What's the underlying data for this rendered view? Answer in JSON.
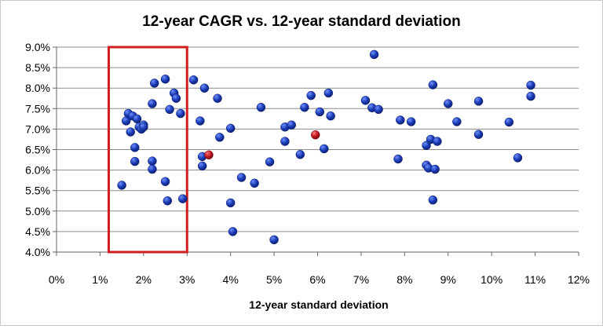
{
  "chart_data": {
    "type": "scatter",
    "title": "12-year CAGR vs. 12-year standard deviation",
    "xlabel": "12-year standard deviation",
    "ylabel": "",
    "xlim": [
      0,
      12
    ],
    "ylim": [
      4.0,
      9.0
    ],
    "x_ticks": [
      0,
      1,
      2,
      3,
      4,
      5,
      6,
      7,
      8,
      9,
      10,
      11,
      12
    ],
    "y_ticks": [
      4.0,
      4.5,
      5.0,
      5.5,
      6.0,
      6.5,
      7.0,
      7.5,
      8.0,
      8.5,
      9.0
    ],
    "x_tick_format": "percent0",
    "y_tick_format": "percent1",
    "grid": "horizontal",
    "legend": "none",
    "colors": {
      "blue": "#1f3fb3",
      "red": "#c0141e",
      "highlight": "#d11f1f"
    },
    "highlight_range_x": [
      1.2,
      3.0
    ],
    "series": [
      {
        "color": "blue",
        "points": [
          [
            1.5,
            5.63
          ],
          [
            1.6,
            7.2
          ],
          [
            1.65,
            7.38
          ],
          [
            1.7,
            6.93
          ],
          [
            1.75,
            7.32
          ],
          [
            1.8,
            6.55
          ],
          [
            1.8,
            6.21
          ],
          [
            1.85,
            7.25
          ],
          [
            1.9,
            7.05
          ],
          [
            1.95,
            7.0
          ],
          [
            2.0,
            7.1
          ],
          [
            2.0,
            7.05
          ],
          [
            2.2,
            7.62
          ],
          [
            2.2,
            6.22
          ],
          [
            2.2,
            6.02
          ],
          [
            2.25,
            8.12
          ],
          [
            2.5,
            8.22
          ],
          [
            2.5,
            5.72
          ],
          [
            2.55,
            5.25
          ],
          [
            2.6,
            7.48
          ],
          [
            2.7,
            7.88
          ],
          [
            2.75,
            7.75
          ],
          [
            2.85,
            7.38
          ],
          [
            2.9,
            5.3
          ],
          [
            3.15,
            8.2
          ],
          [
            3.3,
            7.2
          ],
          [
            3.35,
            6.33
          ],
          [
            3.35,
            6.1
          ],
          [
            3.4,
            8.0
          ],
          [
            3.7,
            7.75
          ],
          [
            3.75,
            6.8
          ],
          [
            4.0,
            7.02
          ],
          [
            4.0,
            5.2
          ],
          [
            4.05,
            4.5
          ],
          [
            4.25,
            5.82
          ],
          [
            4.55,
            5.68
          ],
          [
            4.7,
            7.53
          ],
          [
            4.9,
            6.2
          ],
          [
            5.0,
            4.3
          ],
          [
            5.25,
            7.05
          ],
          [
            5.25,
            6.7
          ],
          [
            5.4,
            7.1
          ],
          [
            5.6,
            6.38
          ],
          [
            5.7,
            7.53
          ],
          [
            5.85,
            7.82
          ],
          [
            6.05,
            7.42
          ],
          [
            6.15,
            6.52
          ],
          [
            6.25,
            7.88
          ],
          [
            6.3,
            7.32
          ],
          [
            7.1,
            7.7
          ],
          [
            7.25,
            7.52
          ],
          [
            7.3,
            8.82
          ],
          [
            7.4,
            7.48
          ],
          [
            7.85,
            6.27
          ],
          [
            7.9,
            7.22
          ],
          [
            8.15,
            7.18
          ],
          [
            8.5,
            6.6
          ],
          [
            8.5,
            6.12
          ],
          [
            8.55,
            6.05
          ],
          [
            8.6,
            6.75
          ],
          [
            8.65,
            8.08
          ],
          [
            8.65,
            5.27
          ],
          [
            8.7,
            6.02
          ],
          [
            8.75,
            6.7
          ],
          [
            9.0,
            7.62
          ],
          [
            9.2,
            7.18
          ],
          [
            9.7,
            7.68
          ],
          [
            9.7,
            6.87
          ],
          [
            10.4,
            7.17
          ],
          [
            10.6,
            6.3
          ],
          [
            10.9,
            8.07
          ],
          [
            10.9,
            7.8
          ]
        ]
      },
      {
        "color": "red",
        "points": [
          [
            3.5,
            6.37
          ],
          [
            5.95,
            6.86
          ]
        ]
      }
    ]
  }
}
